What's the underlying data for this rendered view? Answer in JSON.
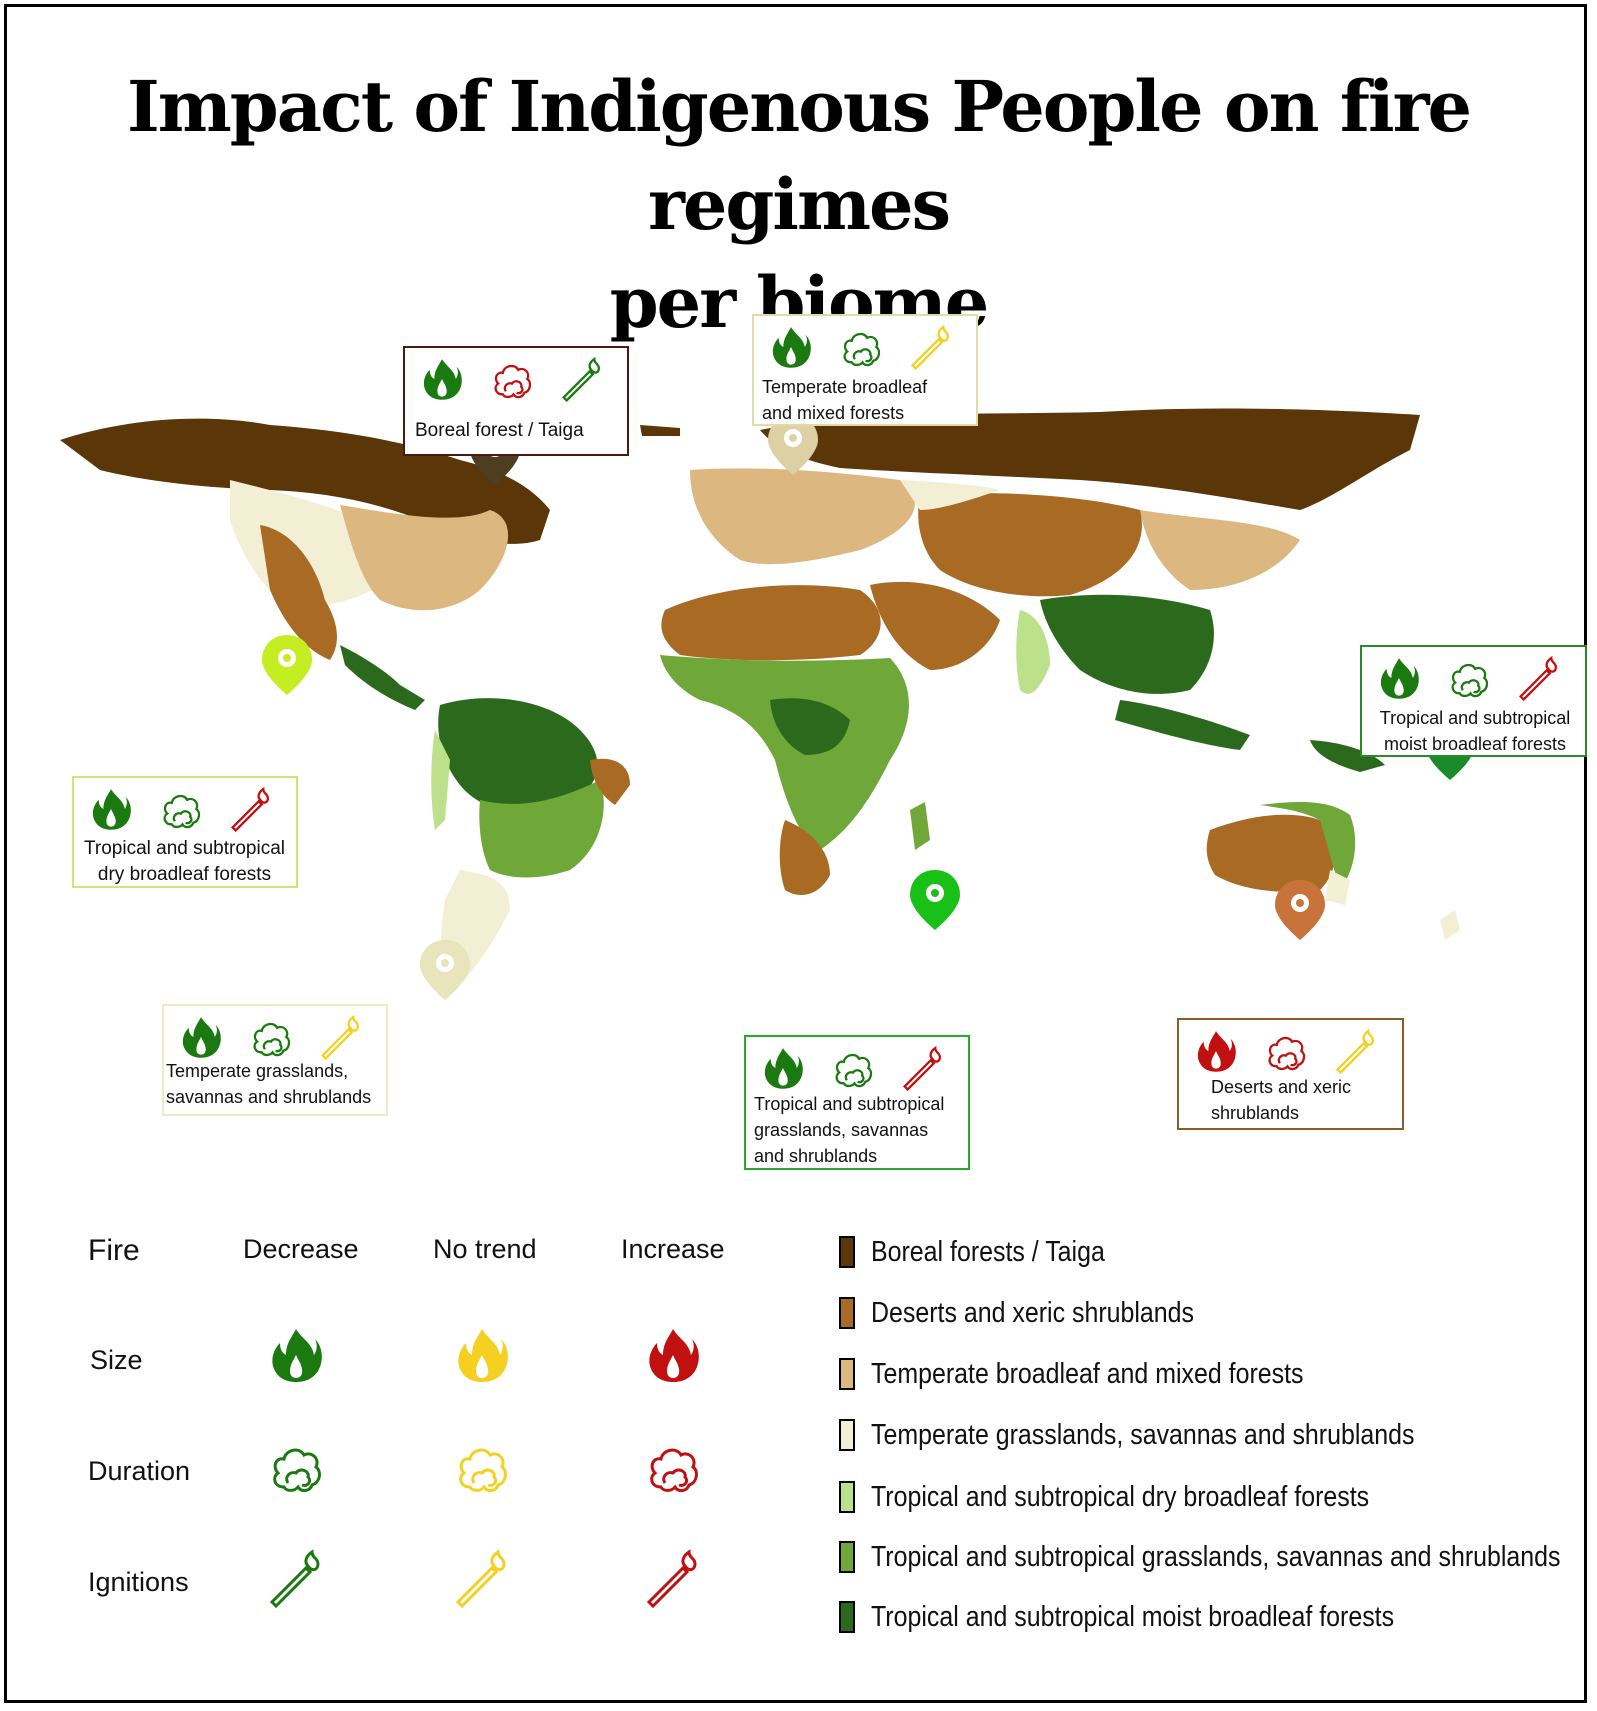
{
  "title": {
    "line1": "Impact of Indigenous People on fire regimes",
    "line2": "per biome"
  },
  "colors": {
    "decrease": "#1a7a10",
    "no_trend": "#f5d020",
    "increase": "#c01010",
    "boreal": "#5a3608",
    "desert": "#a96a24",
    "temperate_broadleaf": "#dcb880",
    "temperate_grassland": "#f2efd5",
    "tropical_dry": "#bde08a",
    "tropical_grassland": "#6fa838",
    "tropical_moist": "#2b6a1c"
  },
  "callouts": [
    {
      "id": "boreal",
      "label": "Boreal forest / Taiga",
      "size": "decrease",
      "duration": "increase",
      "ignitions": "decrease",
      "border": "#4a1a10"
    },
    {
      "id": "temperate-broadleaf",
      "label": "Temperate broadleaf\nand mixed forests",
      "size": "decrease",
      "duration": "decrease",
      "ignitions": "no_trend",
      "border": "#e6d9a8"
    },
    {
      "id": "tropical-moist",
      "label": "Tropical and subtropical\nmoist broadleaf forests",
      "size": "decrease",
      "duration": "decrease",
      "ignitions": "increase",
      "border": "#2a8a2a"
    },
    {
      "id": "tropical-dry",
      "label": "Tropical and subtropical\ndry broadleaf forests",
      "size": "decrease",
      "duration": "decrease",
      "ignitions": "increase",
      "border": "#c8e87a"
    },
    {
      "id": "temperate-grassland",
      "label": "Temperate grasslands,\nsavannas and shrublands",
      "size": "decrease",
      "duration": "decrease",
      "ignitions": "no_trend",
      "border": "#ecebc2"
    },
    {
      "id": "tropical-grassland",
      "label": "Tropical and subtropical\ngrasslands, savannas\nand shrublands",
      "size": "decrease",
      "duration": "decrease",
      "ignitions": "increase",
      "border": "#2aaa2a"
    },
    {
      "id": "desert",
      "label": "Deserts and xeric\nshrublands",
      "size": "increase",
      "duration": "increase",
      "ignitions": "no_trend",
      "border": "#8a5a2a"
    }
  ],
  "legend": {
    "header": "Fire",
    "columns": [
      "Decrease",
      "No trend",
      "Increase"
    ],
    "rows": [
      "Size",
      "Duration",
      "Ignitions"
    ],
    "biomes": [
      {
        "name": "Boreal forests / Taiga",
        "color": "#5a3608"
      },
      {
        "name": "Deserts and xeric shrublands",
        "color": "#a96a24"
      },
      {
        "name": "Temperate broadleaf and mixed forests",
        "color": "#dcb880"
      },
      {
        "name": "Temperate grasslands, savannas and shrublands",
        "color": "#f2efd5"
      },
      {
        "name": "Tropical and subtropical dry broadleaf forests",
        "color": "#bde08a"
      },
      {
        "name": "Tropical and subtropical grasslands, savannas and shrublands",
        "color": "#6fa838"
      },
      {
        "name": "Tropical and subtropical moist broadleaf forests",
        "color": "#2b6a1c"
      }
    ]
  }
}
